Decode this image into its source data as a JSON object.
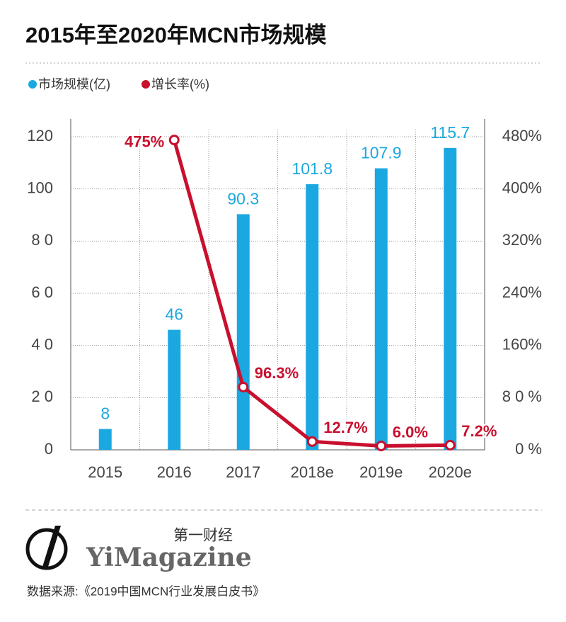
{
  "chart_data": {
    "type": "bar_line",
    "title": "2015年至2020年MCN市场规模",
    "categories": [
      "2015",
      "2016",
      "2017",
      "2018e",
      "2019e",
      "2020e"
    ],
    "series": [
      {
        "name": "市场规模(亿)",
        "color": "#1ba8e0",
        "type": "bar",
        "values": [
          8,
          46,
          90.3,
          101.8,
          107.9,
          115.7
        ]
      },
      {
        "name": "增长率(%)",
        "color": "#c8102e",
        "type": "line",
        "axis": "y2",
        "values": [
          null,
          475,
          96.3,
          12.7,
          6.0,
          7.2
        ],
        "value_labels": [
          null,
          "475%",
          "96.3%",
          "12.7%",
          "6.0%",
          "7.2%"
        ]
      }
    ],
    "ylim": [
      0,
      120
    ],
    "yticks": [
      0,
      {
        "value": 20,
        "label": "2 0"
      },
      {
        "value": 40,
        "label": "4 0"
      },
      {
        "value": 60,
        "label": "6 0"
      },
      {
        "value": 80,
        "label": "8 0"
      },
      100,
      120
    ],
    "y2lim": [
      0,
      480
    ],
    "y2ticks": [
      {
        "value": 0,
        "label": "0 %"
      },
      {
        "value": 80,
        "label": "8 0 %"
      },
      {
        "value": 160,
        "label": "160%"
      },
      {
        "value": 240,
        "label": "240%"
      },
      {
        "value": 320,
        "label": "320%"
      },
      {
        "value": 400,
        "label": "400%"
      },
      {
        "value": 480,
        "label": "480%"
      }
    ],
    "grid": true,
    "legend": "top-left"
  },
  "footer": {
    "brand_cn": "第一财经",
    "brand": "YiMagazine",
    "source": "数据来源:《2019中国MCN行业发展白皮书》"
  }
}
